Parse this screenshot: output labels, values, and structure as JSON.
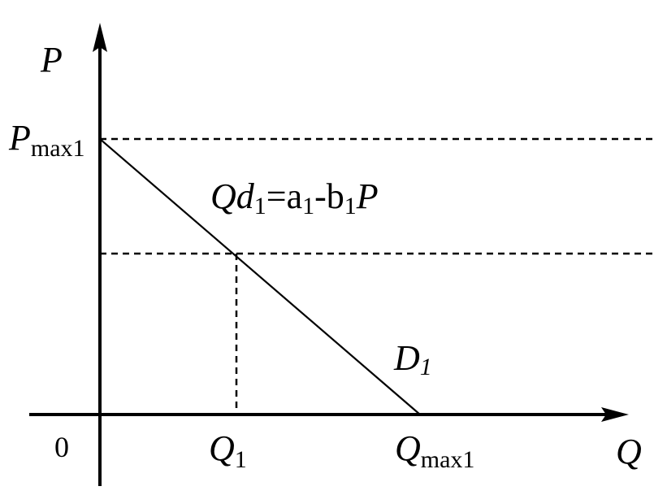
{
  "axes": {
    "y_label": "P",
    "x_label": "Q",
    "origin_label": "0"
  },
  "price_max": {
    "main": "P",
    "sub": "max1"
  },
  "quantity_point": {
    "main": "Q",
    "sub": "1"
  },
  "quantity_max": {
    "main": "Q",
    "sub": "max1"
  },
  "equation": {
    "q": "Q",
    "d": "d",
    "sub_1": "1",
    "eq_a": "=a",
    "sub_2": "1",
    "minus_b": "-b",
    "sub_3": "1",
    "p": "P"
  },
  "curve_label": {
    "main": "D",
    "sub": "1"
  },
  "colors": {
    "ink": "#000000",
    "background": "#ffffff"
  }
}
